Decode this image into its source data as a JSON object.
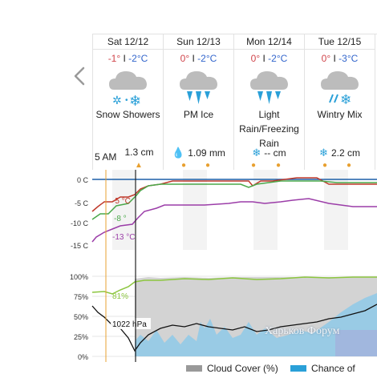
{
  "days": [
    {
      "date": "Sat 12/12",
      "high": "-1°",
      "sep": " I ",
      "low": "-2°C",
      "condition": "Snow Showers",
      "precip_value": "1.3 cm",
      "precip_glyph": "",
      "icon": "snow-showers-icon"
    },
    {
      "date": "Sun 12/13",
      "high": "0°",
      "sep": " I ",
      "low": "-2°C",
      "condition": "PM Ice",
      "precip_value": "1.09 mm",
      "precip_glyph": "💧",
      "icon": "ice-icon"
    },
    {
      "date": "Mon 12/14",
      "high": "0°",
      "sep": " I ",
      "low": "-2°C",
      "condition": "Light Rain/Freezing Rain",
      "precip_value": "-- cm",
      "precip_glyph": "❄",
      "icon": "freezing-rain-icon"
    },
    {
      "date": "Tue 12/15",
      "high": "0°",
      "sep": " I ",
      "low": "-3°C",
      "condition": "Wintry Mix",
      "precip_value": "2.2 cm",
      "precip_glyph": "❄",
      "icon": "wintry-mix-icon"
    }
  ],
  "time_label": "5 AM",
  "temp_chart": {
    "y_ticks": [
      "0 C",
      "-5 C",
      "-10 C",
      "-15 C"
    ],
    "temp_label": "-5 °C",
    "feels_label": "-8 °",
    "dew_label": "-13 °C"
  },
  "humidity_chart": {
    "y_ticks": [
      "100%",
      "75%",
      "50%",
      "25%",
      "0%"
    ],
    "humidity_label": "81%",
    "pressure_label": "1022 hPa"
  },
  "legend": [
    {
      "label": "Cloud Cover (%)",
      "color": "#999999"
    },
    {
      "label": "Chance of",
      "color": "#2aa0d8"
    }
  ],
  "watermark": "Харьков Форум",
  "colors": {
    "temp": "#c0392b",
    "feels": "#4aa84a",
    "dew": "#9b3da8",
    "humidity": "#8cc63f",
    "pressure": "#111111",
    "cloud": "#cccccc",
    "rain": "#6fbce0"
  }
}
